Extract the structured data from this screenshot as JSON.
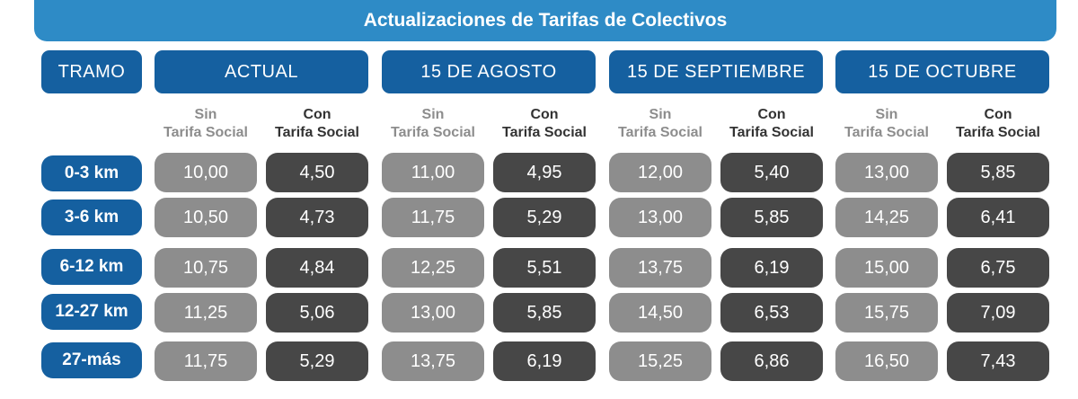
{
  "title": "Actualizaciones de Tarifas de Colectivos",
  "tramo_header": "TRAMO",
  "periods": [
    "ACTUAL",
    "15 DE AGOSTO",
    "15 DE SEPTIEMBRE",
    "15 DE OCTUBRE"
  ],
  "sub_headers": {
    "sin": {
      "line1": "Sin",
      "line2": "Tarifa Social"
    },
    "con": {
      "line1": "Con",
      "line2": "Tarifa Social"
    }
  },
  "rows": [
    {
      "tramo": "0-3 km",
      "values": [
        "10,00",
        "4,50",
        "11,00",
        "4,95",
        "12,00",
        "5,40",
        "13,00",
        "5,85"
      ]
    },
    {
      "tramo": "3-6 km",
      "values": [
        "10,50",
        "4,73",
        "11,75",
        "5,29",
        "13,00",
        "5,85",
        "14,25",
        "6,41"
      ]
    },
    {
      "tramo": "6-12 km",
      "values": [
        "10,75",
        "4,84",
        "12,25",
        "5,51",
        "13,75",
        "6,19",
        "15,00",
        "6,75"
      ]
    },
    {
      "tramo": "12-27 km",
      "values": [
        "11,25",
        "5,06",
        "13,00",
        "5,85",
        "14,50",
        "6,53",
        "15,75",
        "7,09"
      ]
    },
    {
      "tramo": "27-más",
      "values": [
        "11,75",
        "5,29",
        "13,75",
        "6,19",
        "15,25",
        "6,86",
        "16,50",
        "7,43"
      ]
    }
  ],
  "colors": {
    "title_bar": "#2e8bc6",
    "header_blue": "#1560a0",
    "sin_cell": "#8d8d8d",
    "con_cell": "#474747"
  }
}
